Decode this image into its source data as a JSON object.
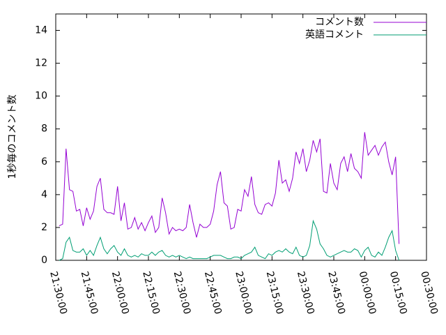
{
  "chart_data": {
    "type": "line",
    "ylabel": "1秒毎のコメント数",
    "x": [
      "21:31:40",
      "21:33:20",
      "21:35:00",
      "21:36:40",
      "21:38:20",
      "21:40:00",
      "21:41:40",
      "21:43:20",
      "21:45:00",
      "21:46:40",
      "21:48:20",
      "21:50:00",
      "21:51:40",
      "21:53:20",
      "21:55:00",
      "21:56:40",
      "21:58:20",
      "22:00:00",
      "22:01:40",
      "22:03:20",
      "22:05:00",
      "22:06:40",
      "22:08:20",
      "22:10:00",
      "22:11:40",
      "22:13:20",
      "22:15:00",
      "22:16:40",
      "22:18:20",
      "22:20:00",
      "22:21:40",
      "22:23:20",
      "22:25:00",
      "22:26:40",
      "22:28:20",
      "22:30:00",
      "22:31:40",
      "22:33:20",
      "22:35:00",
      "22:36:40",
      "22:38:20",
      "22:40:00",
      "22:41:40",
      "22:43:20",
      "22:45:00",
      "22:46:40",
      "22:48:20",
      "22:50:00",
      "22:51:40",
      "22:53:20",
      "22:55:00",
      "22:56:40",
      "22:58:20",
      "23:00:00",
      "23:01:40",
      "23:03:20",
      "23:05:00",
      "23:06:40",
      "23:08:20",
      "23:10:00",
      "23:11:40",
      "23:13:20",
      "23:15:00",
      "23:16:40",
      "23:18:20",
      "23:20:00",
      "23:21:40",
      "23:23:20",
      "23:25:00",
      "23:26:40",
      "23:28:20",
      "23:30:00",
      "23:31:40",
      "23:33:20",
      "23:35:00",
      "23:36:40",
      "23:38:20",
      "23:40:00",
      "23:41:40",
      "23:43:20",
      "23:45:00",
      "23:46:40",
      "23:48:20",
      "23:50:00",
      "23:51:40",
      "23:53:20",
      "23:55:00",
      "23:56:40",
      "23:58:20",
      "00:00:00",
      "00:01:40",
      "00:03:20",
      "00:05:00",
      "00:06:40",
      "00:08:20",
      "00:10:00",
      "00:11:40",
      "00:13:20",
      "00:15:00",
      "00:16:40"
    ],
    "series": [
      {
        "name": "コメント数",
        "color": "#9400d3",
        "values": [
          2.1,
          2.2,
          6.8,
          4.3,
          4.2,
          3.0,
          3.1,
          2.1,
          3.2,
          2.5,
          3.0,
          4.5,
          5.0,
          3.1,
          2.9,
          2.9,
          2.8,
          4.5,
          2.4,
          3.5,
          1.9,
          2.0,
          2.6,
          1.9,
          2.3,
          1.8,
          2.3,
          2.7,
          1.7,
          2.0,
          3.8,
          2.9,
          1.6,
          2.0,
          1.8,
          1.9,
          1.8,
          2.0,
          3.4,
          2.3,
          1.4,
          2.2,
          2.0,
          2.0,
          2.2,
          3.0,
          4.6,
          5.4,
          3.5,
          3.3,
          1.9,
          2.0,
          3.1,
          3.0,
          4.3,
          3.9,
          5.1,
          3.4,
          2.9,
          2.8,
          3.4,
          3.5,
          3.3,
          4.1,
          6.1,
          4.7,
          4.9,
          4.2,
          5.0,
          6.6,
          5.9,
          6.8,
          5.4,
          6.1,
          7.3,
          6.6,
          7.4,
          4.2,
          4.1,
          5.9,
          4.7,
          4.3,
          5.9,
          6.3,
          5.4,
          6.5,
          5.6,
          5.4,
          5.0,
          7.8,
          6.4,
          6.7,
          7.0,
          6.4,
          6.9,
          7.2,
          6.0,
          5.2,
          6.3,
          1.0
        ]
      },
      {
        "name": "英語コメント",
        "color": "#009e73",
        "values": [
          0,
          0.1,
          1.1,
          1.4,
          0.6,
          0.5,
          0.5,
          0.7,
          0.3,
          0.6,
          0.3,
          0.9,
          1.4,
          0.7,
          0.4,
          0.7,
          0.9,
          0.5,
          0.3,
          0.7,
          0.3,
          0.2,
          0.3,
          0.2,
          0.4,
          0.3,
          0.3,
          0.5,
          0.3,
          0.5,
          0.6,
          0.3,
          0.2,
          0.3,
          0.2,
          0.3,
          0.2,
          0.1,
          0.2,
          0.1,
          0.1,
          0.1,
          0.1,
          0.1,
          0.2,
          0.3,
          0.3,
          0.3,
          0.2,
          0.1,
          0.1,
          0.2,
          0.2,
          0.1,
          0.3,
          0.4,
          0.5,
          0.8,
          0.3,
          0.2,
          0.1,
          0.4,
          0.3,
          0.5,
          0.6,
          0.5,
          0.7,
          0.5,
          0.4,
          0.8,
          0.3,
          0.2,
          0.3,
          0.9,
          2.4,
          1.9,
          1.0,
          0.7,
          0.3,
          0.2,
          0.3,
          0.4,
          0.5,
          0.6,
          0.5,
          0.5,
          0.7,
          0.6,
          0.2,
          0.6,
          0.8,
          0.3,
          0.2,
          0.5,
          0.3,
          0.8,
          1.4,
          1.8,
          0.6,
          0
        ]
      }
    ],
    "xlim": [
      "21:30:00",
      "00:30:00"
    ],
    "xticks": [
      "21:30:00",
      "21:45:00",
      "22:00:00",
      "22:15:00",
      "22:30:00",
      "22:45:00",
      "23:00:00",
      "23:15:00",
      "23:30:00",
      "23:45:00",
      "00:00:00",
      "00:15:00",
      "00:30:00"
    ],
    "ylim": [
      0,
      15
    ],
    "yticks": [
      0,
      2,
      4,
      6,
      8,
      10,
      12,
      14
    ],
    "legend": "top-right"
  }
}
